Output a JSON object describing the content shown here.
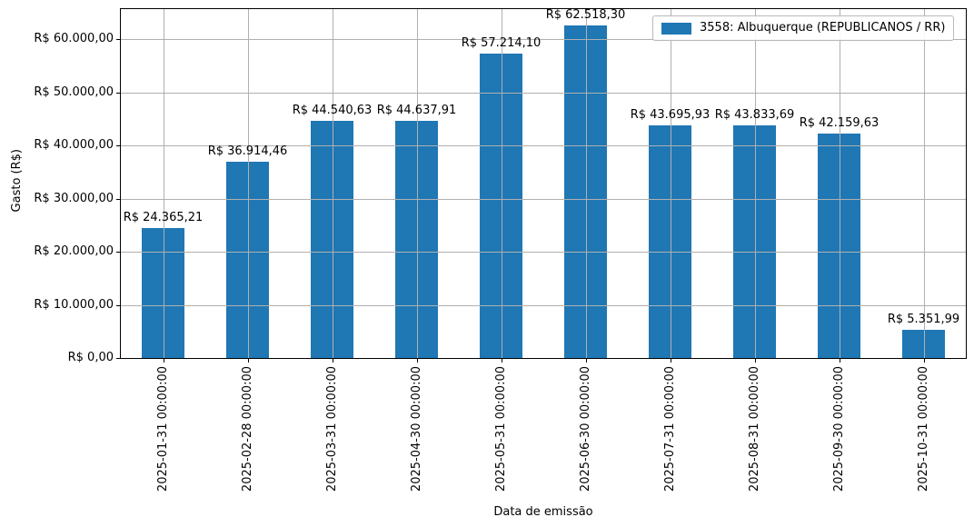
{
  "figure": {
    "background": "#ffffff",
    "text_color": "#000000",
    "grid_color": "#b0b0b0",
    "spine_color": "#000000"
  },
  "chart_data": {
    "type": "bar",
    "title": "",
    "xlabel": "Data de emissão",
    "ylabel": "Gasto (R$)",
    "categories": [
      "2025-01-31 00:00:00",
      "2025-02-28 00:00:00",
      "2025-03-31 00:00:00",
      "2025-04-30 00:00:00",
      "2025-05-31 00:00:00",
      "2025-06-30 00:00:00",
      "2025-07-31 00:00:00",
      "2025-08-31 00:00:00",
      "2025-09-30 00:00:00",
      "2025-10-31 00:00:00"
    ],
    "values": [
      24365.21,
      36914.46,
      44540.63,
      44637.91,
      57214.1,
      62518.3,
      43695.93,
      43833.69,
      42159.63,
      5351.99
    ],
    "value_labels": [
      "R$ 24.365,21",
      "R$ 36.914,46",
      "R$ 44.540,63",
      "R$ 44.637,91",
      "R$ 57.214,10",
      "R$ 62.518,30",
      "R$ 43.695,93",
      "R$ 43.833,69",
      "R$ 42.159,63",
      "R$ 5.351,99"
    ],
    "yticks": [
      {
        "value": 0,
        "label": "R$ 0,00"
      },
      {
        "value": 10000,
        "label": "R$ 10.000,00"
      },
      {
        "value": 20000,
        "label": "R$ 20.000,00"
      },
      {
        "value": 30000,
        "label": "R$ 30.000,00"
      },
      {
        "value": 40000,
        "label": "R$ 40.000,00"
      },
      {
        "value": 50000,
        "label": "R$ 50.000,00"
      },
      {
        "value": 60000,
        "label": "R$ 60.000,00"
      }
    ],
    "ylim": [
      0,
      65644
    ],
    "grid": true,
    "grid_over_bars": true,
    "bar_color": "#1f77b4",
    "legend": {
      "position": "upper-right",
      "entries": [
        {
          "label": "3558: Albuquerque (REPUBLICANOS / RR)",
          "color": "#1f77b4"
        }
      ]
    }
  }
}
